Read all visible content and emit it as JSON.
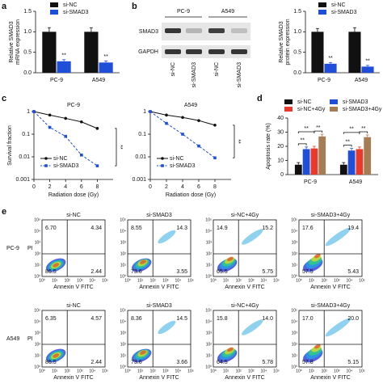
{
  "panel_labels": [
    "a",
    "b",
    "c",
    "d",
    "e"
  ],
  "chart_data": [
    {
      "type": "bar",
      "y_label": [
        "Relative SMAD3",
        "mRNA expression"
      ],
      "categories": [
        "PC-9",
        "A549"
      ],
      "series": [
        {
          "name": "si-NC",
          "color": "#111111",
          "values": [
            1.0,
            1.0
          ],
          "errors": [
            0.1,
            0.1
          ]
        },
        {
          "name": "si-SMAD3",
          "color": "#1f4fd8",
          "values": [
            0.28,
            0.25
          ],
          "errors": [
            0.04,
            0.04
          ]
        }
      ],
      "ylim": [
        0,
        1.5
      ],
      "yticks": [
        {
          "value": 0,
          "label": "0.0"
        },
        {
          "value": 0.5,
          "label": "0.5"
        },
        {
          "value": 1,
          "label": "1.0"
        },
        {
          "value": 1.5,
          "label": "1.5"
        }
      ],
      "significance": [
        "**",
        "**"
      ]
    },
    {
      "type": "bar",
      "y_label": [
        "Relative SMAD3",
        "protein expression"
      ],
      "categories": [
        "PC-9",
        "A549"
      ],
      "series": [
        {
          "name": "si-NC",
          "color": "#111111",
          "values": [
            1.0,
            1.0
          ],
          "errors": [
            0.08,
            0.1
          ]
        },
        {
          "name": "si-SMAD3",
          "color": "#1f4fd8",
          "values": [
            0.22,
            0.15
          ],
          "errors": [
            0.03,
            0.03
          ]
        }
      ],
      "ylim": [
        0,
        1.5
      ],
      "yticks": [
        {
          "value": 0,
          "label": "0.0"
        },
        {
          "value": 0.5,
          "label": "0.5"
        },
        {
          "value": 1,
          "label": "1.0"
        },
        {
          "value": 1.5,
          "label": "1.5"
        }
      ],
      "significance": [
        "**",
        "**"
      ]
    },
    {
      "type": "line",
      "title": "PC-9",
      "x_label": "Radiation dose (Gy)",
      "y_label": [
        "Survival fraction"
      ],
      "log_y": true,
      "x": [
        0,
        2,
        4,
        6,
        8
      ],
      "series": [
        {
          "name": "si-NC",
          "color": "#111111",
          "marker": "circle",
          "dashed": false,
          "values": [
            1,
            0.7,
            0.5,
            0.35,
            0.18
          ]
        },
        {
          "name": "si-SMAD3",
          "color": "#1f4fd8",
          "marker": "square",
          "dashed": true,
          "values": [
            1,
            0.2,
            0.08,
            0.012,
            0.004
          ]
        }
      ],
      "xlim": [
        0,
        10
      ],
      "xticks": [
        0,
        2,
        4,
        6,
        8
      ],
      "ylim": [
        0.001,
        1
      ],
      "yticks": [
        0.001,
        0.01,
        0.1,
        1
      ],
      "significance": "**"
    },
    {
      "type": "line",
      "title": "A549",
      "x_label": "Radiation dose (Gy)",
      "log_y": true,
      "x": [
        0,
        2,
        4,
        6,
        8
      ],
      "series": [
        {
          "name": "si-NC",
          "color": "#111111",
          "marker": "circle",
          "dashed": false,
          "values": [
            1,
            0.7,
            0.55,
            0.4,
            0.25
          ]
        },
        {
          "name": "si-SMAD3",
          "color": "#1f4fd8",
          "marker": "square",
          "dashed": true,
          "values": [
            1,
            0.3,
            0.1,
            0.03,
            0.009
          ]
        }
      ],
      "xlim": [
        0,
        10
      ],
      "xticks": [
        0,
        2,
        4,
        6,
        8
      ],
      "ylim": [
        0.001,
        1
      ],
      "yticks": [
        0.001,
        0.01,
        0.1,
        1
      ],
      "significance": "**"
    },
    {
      "type": "bar",
      "y_label": [
        "Apoptosis rate (%)"
      ],
      "categories": [
        "PC-9",
        "A549"
      ],
      "series": [
        {
          "name": "si-NC",
          "color": "#111111",
          "values": [
            7,
            7
          ],
          "errors": [
            1.5,
            1.5
          ]
        },
        {
          "name": "si-SMAD3",
          "color": "#1f4fd8",
          "values": [
            18,
            17
          ],
          "errors": [
            1.5,
            1.5
          ]
        },
        {
          "name": "si-NC+4Gy",
          "color": "#e8392b",
          "values": [
            18.5,
            18
          ],
          "errors": [
            1.5,
            1.5
          ]
        },
        {
          "name": "si-SMAD3+4Gy",
          "color": "#a67c52",
          "values": [
            27,
            26.5
          ],
          "errors": [
            1.5,
            1.5
          ]
        }
      ],
      "ylim": [
        0,
        40
      ],
      "yticks": [
        0,
        10,
        20,
        30,
        40
      ],
      "significance": [
        [
          "**",
          "**",
          "**"
        ],
        [
          "**",
          "**",
          "**"
        ]
      ]
    }
  ],
  "blot": {
    "cell_lines": [
      "PC-9",
      "A549"
    ],
    "proteins": [
      "SMAD3",
      "GAPDH"
    ],
    "lanes": [
      "si-NC",
      "si-SMAD3",
      "si-NC",
      "si-SMAD3"
    ]
  },
  "flow": {
    "x_label": "Annexin V FITC",
    "y_label": "PI",
    "ticks": [
      "10⁰",
      "10¹",
      "10²",
      "10³",
      "10⁴",
      "10⁵"
    ],
    "columns": [
      "si-NC",
      "si-SMAD3",
      "si-NC+4Gy",
      "si-SMAD3+4Gy"
    ],
    "rows": [
      {
        "name": "PC-9",
        "quadrants": [
          [
            "6.70",
            "4.34",
            "86.5",
            "2.44"
          ],
          [
            "8.55",
            "14.3",
            "73.6",
            "3.55"
          ],
          [
            "14.9",
            "15.2",
            "65.5",
            "5.75"
          ],
          [
            "17.6",
            "19.4",
            "57.5",
            "5.43"
          ]
        ]
      },
      {
        "name": "A549",
        "quadrants": [
          [
            "6.35",
            "4.57",
            "86.5",
            "2.44"
          ],
          [
            "8.36",
            "14.5",
            "73.6",
            "3.66"
          ],
          [
            "15.8",
            "14.0",
            "64.5",
            "5.78"
          ],
          [
            "17.0",
            "20.0",
            "57.8",
            "5.15"
          ]
        ]
      }
    ]
  }
}
